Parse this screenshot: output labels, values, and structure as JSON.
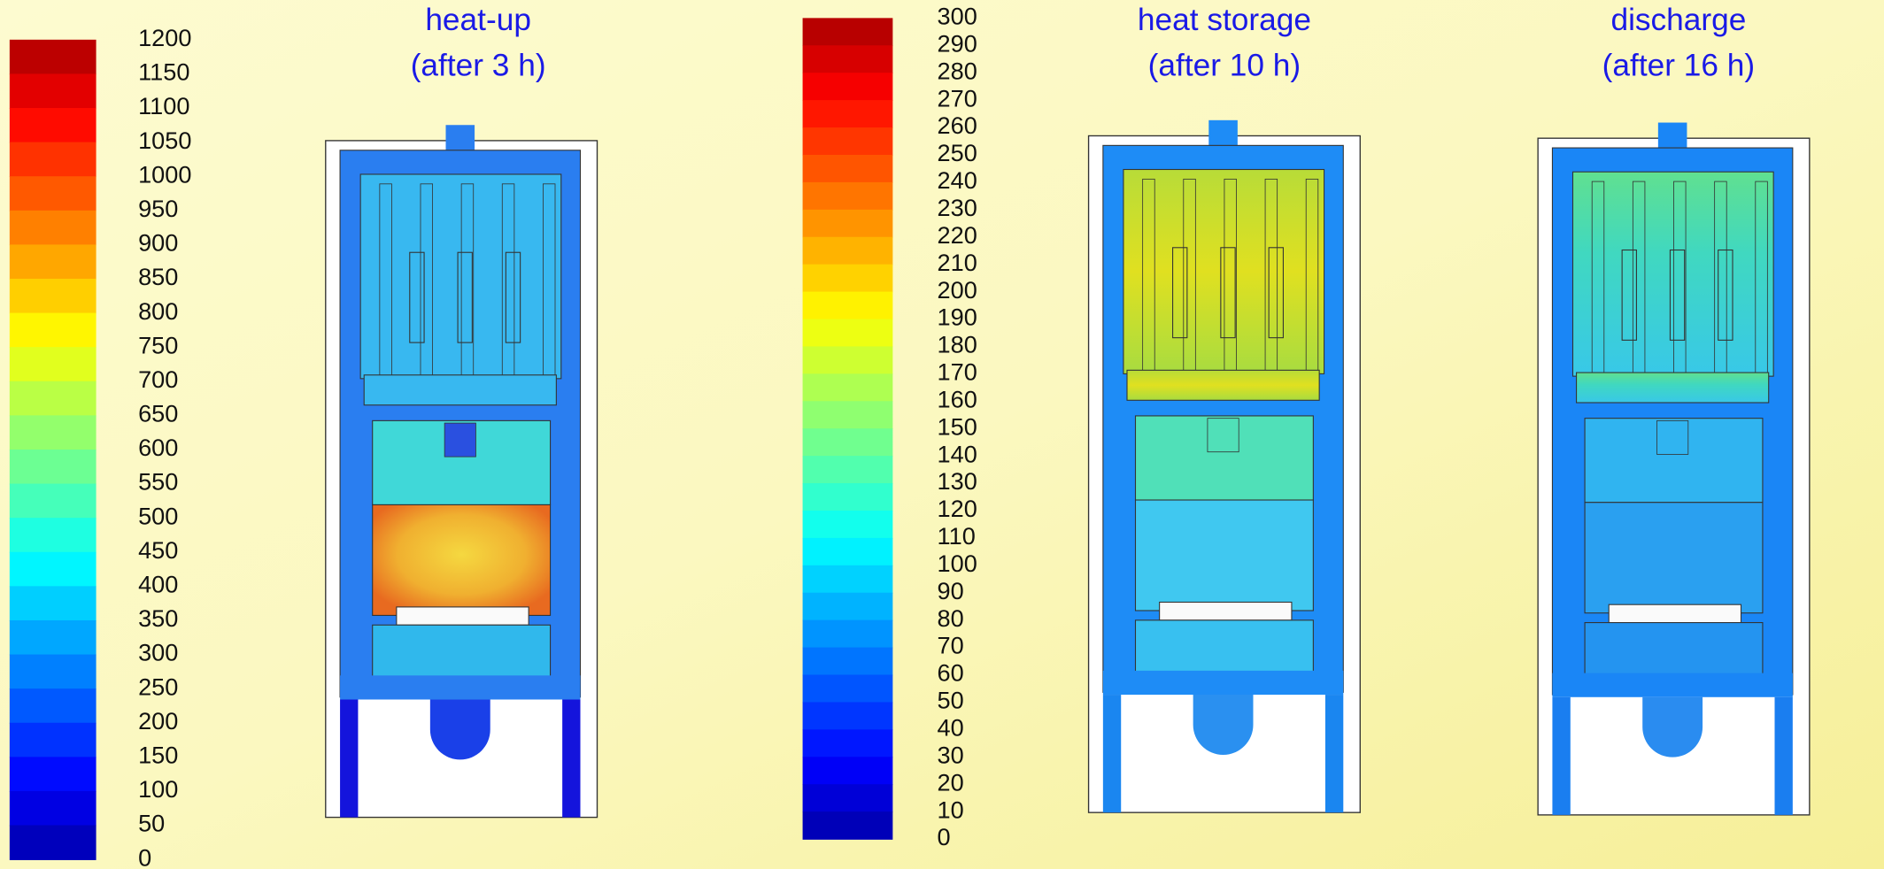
{
  "legends": [
    {
      "ticks": [
        1200,
        1150,
        1100,
        1050,
        1000,
        950,
        900,
        850,
        800,
        750,
        700,
        650,
        600,
        550,
        500,
        450,
        400,
        350,
        300,
        250,
        200,
        150,
        100,
        50,
        0
      ]
    },
    {
      "ticks": [
        300,
        290,
        280,
        270,
        260,
        250,
        240,
        230,
        220,
        210,
        200,
        190,
        180,
        170,
        160,
        150,
        140,
        130,
        120,
        110,
        100,
        90,
        80,
        70,
        60,
        50,
        40,
        30,
        20,
        10,
        0
      ]
    }
  ],
  "panels": [
    {
      "title": "heat-up",
      "subtitle": "(after 3 h)"
    },
    {
      "title": "heat storage",
      "subtitle": "(after 10 h)"
    },
    {
      "title": "discharge",
      "subtitle": "(after 16 h)"
    }
  ]
}
